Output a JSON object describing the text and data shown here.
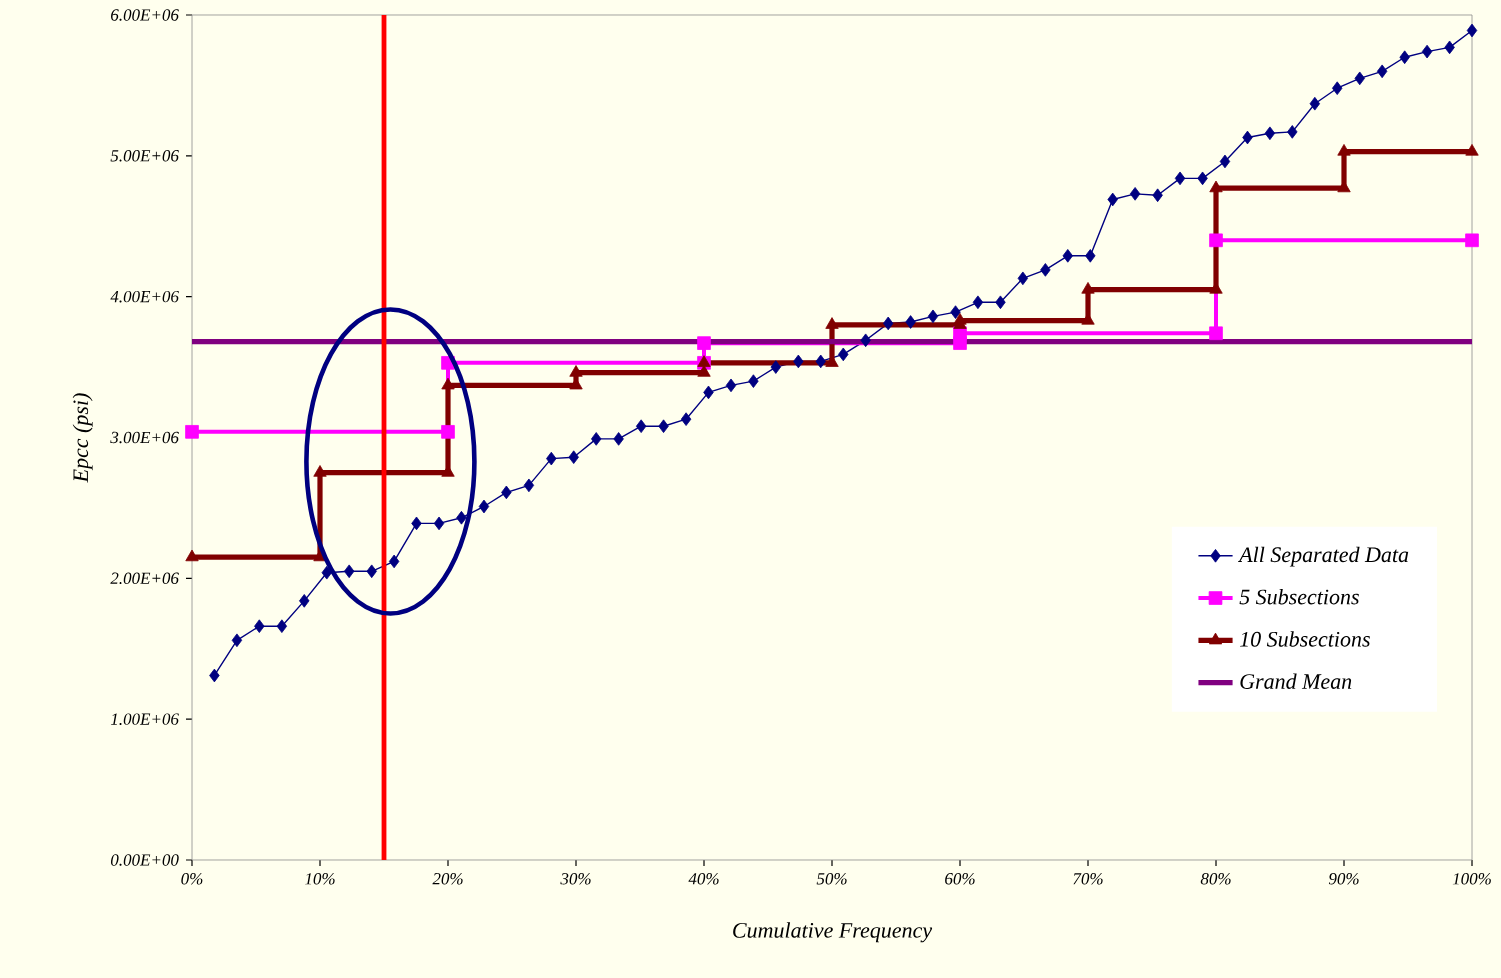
{
  "chart_data": {
    "type": "line",
    "xlabel": "Cumulative Frequency",
    "ylabel": "Epcc (psi)",
    "xlim": [
      0,
      100
    ],
    "ylim": [
      0,
      6000000
    ],
    "xticks": [
      {
        "value": 0,
        "label": "0%"
      },
      {
        "value": 10,
        "label": "10%"
      },
      {
        "value": 20,
        "label": "20%"
      },
      {
        "value": 30,
        "label": "30%"
      },
      {
        "value": 40,
        "label": "40%"
      },
      {
        "value": 50,
        "label": "50%"
      },
      {
        "value": 60,
        "label": "60%"
      },
      {
        "value": 70,
        "label": "70%"
      },
      {
        "value": 80,
        "label": "80%"
      },
      {
        "value": 90,
        "label": "90%"
      },
      {
        "value": 100,
        "label": "100%"
      }
    ],
    "yticks": [
      {
        "value": 0,
        "label": "0.00E+00"
      },
      {
        "value": 1000000,
        "label": "1.00E+06"
      },
      {
        "value": 2000000,
        "label": "2.00E+06"
      },
      {
        "value": 3000000,
        "label": "3.00E+06"
      },
      {
        "value": 4000000,
        "label": "4.00E+06"
      },
      {
        "value": 5000000,
        "label": "5.00E+06"
      },
      {
        "value": 6000000,
        "label": "6.00E+06"
      }
    ],
    "grid": false,
    "legend": "right",
    "series": [
      {
        "name": "All Separated Data",
        "color": "#000080",
        "marker": "diamond",
        "x": [
          1.75,
          3.51,
          5.26,
          7.02,
          8.77,
          10.53,
          12.28,
          14.04,
          15.79,
          17.54,
          19.3,
          21.05,
          22.81,
          24.56,
          26.32,
          28.07,
          29.82,
          31.58,
          33.33,
          35.09,
          36.84,
          38.6,
          40.35,
          42.11,
          43.86,
          45.61,
          47.37,
          49.12,
          50.88,
          52.63,
          54.39,
          56.14,
          57.89,
          59.65,
          61.4,
          63.16,
          64.91,
          66.67,
          68.42,
          70.18,
          71.93,
          73.68,
          75.44,
          77.19,
          78.95,
          80.7,
          82.46,
          84.21,
          85.96,
          87.72,
          89.47,
          91.23,
          92.98,
          94.74,
          96.49,
          98.25,
          100
        ],
        "values": [
          1310000,
          1560000,
          1660000,
          1660000,
          1840000,
          2040000,
          2050000,
          2050000,
          2120000,
          2390000,
          2390000,
          2430000,
          2510000,
          2610000,
          2660000,
          2850000,
          2860000,
          2990000,
          2990000,
          3080000,
          3080000,
          3130000,
          3320000,
          3370000,
          3400000,
          3500000,
          3540000,
          3540000,
          3590000,
          3690000,
          3810000,
          3820000,
          3860000,
          3890000,
          3960000,
          3960000,
          4130000,
          4190000,
          4290000,
          4290000,
          4690000,
          4730000,
          4720000,
          4840000,
          4840000,
          4960000,
          5130000,
          5160000,
          5170000,
          5370000,
          5480000,
          5550000,
          5600000,
          5700000,
          5740000,
          5770000,
          5890000
        ]
      },
      {
        "name": "5 Subsections",
        "color": "#ff00ff",
        "marker": "square",
        "x": [
          0,
          20,
          20,
          40,
          40,
          60,
          60,
          80,
          80,
          100
        ],
        "values": [
          3040000,
          3040000,
          3530000,
          3530000,
          3670000,
          3670000,
          3740000,
          3740000,
          4400000,
          4400000
        ]
      },
      {
        "name": "10 Subsections",
        "color": "#800000",
        "marker": "triangle",
        "x": [
          0,
          10,
          10,
          20,
          20,
          30,
          30,
          40,
          40,
          50,
          50,
          60,
          60,
          70,
          70,
          80,
          80,
          90,
          90,
          100
        ],
        "values": [
          2150000,
          2150000,
          2750000,
          2750000,
          3370000,
          3370000,
          3460000,
          3460000,
          3530000,
          3530000,
          3800000,
          3800000,
          3830000,
          3830000,
          4050000,
          4050000,
          4770000,
          4770000,
          5030000,
          5030000
        ]
      },
      {
        "name": "Grand Mean",
        "color": "#800080",
        "marker": "none",
        "x": [
          0,
          100
        ],
        "values": [
          3680000,
          3680000
        ]
      }
    ],
    "ref_lines": [
      {
        "axis": "x",
        "value": 15,
        "color": "#ff0000"
      }
    ]
  }
}
